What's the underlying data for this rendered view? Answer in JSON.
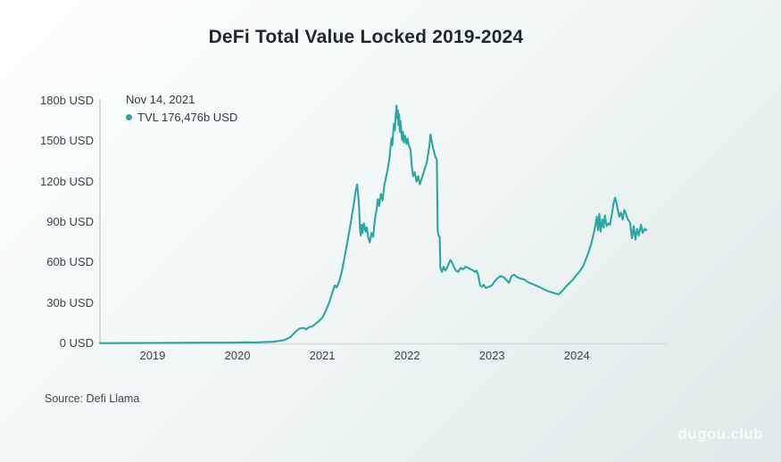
{
  "page": {
    "title": "DeFi Total Value Locked 2019-2024",
    "source": "Source: Defi Llama",
    "watermark": "dugou.club"
  },
  "tooltip": {
    "date": "Nov 14, 2021",
    "value_label": "TVL 176,476b USD"
  },
  "colors": {
    "line": "#2aa79e",
    "axis": "#d4dbdd",
    "text": "#39444c",
    "title": "#1d2830",
    "bg_start": "#fdfefe",
    "bg_mid": "#f2f8f7",
    "bg_end": "#dde9e8"
  },
  "chart_data": {
    "type": "line",
    "title": "DeFi Total Value Locked 2019-2024",
    "xlabel": "",
    "ylabel": "",
    "unit": "b USD",
    "grid": false,
    "legend_position": "top-left",
    "x_range": [
      2018.38,
      2025.07
    ],
    "y_range": [
      0,
      180
    ],
    "x_ticks": [
      {
        "label": "2019",
        "value": 2019
      },
      {
        "label": "2020",
        "value": 2020
      },
      {
        "label": "2021",
        "value": 2021
      },
      {
        "label": "2022",
        "value": 2022
      },
      {
        "label": "2023",
        "value": 2023
      },
      {
        "label": "2024",
        "value": 2024
      }
    ],
    "y_ticks": [
      {
        "label": "0 USD",
        "value": 0
      },
      {
        "label": "30b USD",
        "value": 30
      },
      {
        "label": "60b USD",
        "value": 60
      },
      {
        "label": "90b USD",
        "value": 90
      },
      {
        "label": "120b USD",
        "value": 120
      },
      {
        "label": "150b USD",
        "value": 150
      },
      {
        "label": "180b USD",
        "value": 180
      }
    ],
    "annotation": {
      "date": "Nov 14, 2021",
      "label": "TVL 176,476b USD",
      "x": 2021.875,
      "y": 176.476
    },
    "series": [
      {
        "name": "TVL",
        "points": [
          [
            2018.38,
            0.2
          ],
          [
            2018.7,
            0.25
          ],
          [
            2019.0,
            0.3
          ],
          [
            2019.3,
            0.45
          ],
          [
            2019.6,
            0.5
          ],
          [
            2019.9,
            0.55
          ],
          [
            2020.0,
            0.6
          ],
          [
            2020.1,
            0.8
          ],
          [
            2020.19,
            0.6
          ],
          [
            2020.3,
            0.9
          ],
          [
            2020.42,
            1.2
          ],
          [
            2020.5,
            1.9
          ],
          [
            2020.56,
            2.6
          ],
          [
            2020.62,
            4.5
          ],
          [
            2020.66,
            7
          ],
          [
            2020.7,
            9.5
          ],
          [
            2020.73,
            11
          ],
          [
            2020.78,
            11.5
          ],
          [
            2020.81,
            10.3
          ],
          [
            2020.84,
            12
          ],
          [
            2020.88,
            12.5
          ],
          [
            2020.92,
            14.5
          ],
          [
            2020.96,
            16.5
          ],
          [
            2021.0,
            19
          ],
          [
            2021.04,
            24
          ],
          [
            2021.08,
            30
          ],
          [
            2021.11,
            36
          ],
          [
            2021.13,
            40
          ],
          [
            2021.15,
            43
          ],
          [
            2021.17,
            41.5
          ],
          [
            2021.2,
            46
          ],
          [
            2021.23,
            53
          ],
          [
            2021.26,
            63
          ],
          [
            2021.29,
            73
          ],
          [
            2021.31,
            80
          ],
          [
            2021.33,
            87
          ],
          [
            2021.35,
            95
          ],
          [
            2021.37,
            103
          ],
          [
            2021.39,
            112
          ],
          [
            2021.41,
            118
          ],
          [
            2021.425,
            109
          ],
          [
            2021.435,
            100
          ],
          [
            2021.445,
            84
          ],
          [
            2021.455,
            80
          ],
          [
            2021.465,
            88
          ],
          [
            2021.475,
            82
          ],
          [
            2021.49,
            89
          ],
          [
            2021.51,
            83
          ],
          [
            2021.525,
            86
          ],
          [
            2021.54,
            79
          ],
          [
            2021.56,
            75
          ],
          [
            2021.58,
            82
          ],
          [
            2021.6,
            79
          ],
          [
            2021.62,
            92
          ],
          [
            2021.64,
            99
          ],
          [
            2021.655,
            107
          ],
          [
            2021.67,
            102
          ],
          [
            2021.69,
            111
          ],
          [
            2021.71,
            106
          ],
          [
            2021.73,
            117
          ],
          [
            2021.75,
            123
          ],
          [
            2021.77,
            129
          ],
          [
            2021.79,
            137
          ],
          [
            2021.805,
            146
          ],
          [
            2021.815,
            152
          ],
          [
            2021.825,
            147
          ],
          [
            2021.835,
            156
          ],
          [
            2021.845,
            163
          ],
          [
            2021.855,
            158
          ],
          [
            2021.865,
            169
          ],
          [
            2021.875,
            176.5
          ],
          [
            2021.882,
            167
          ],
          [
            2021.89,
            173
          ],
          [
            2021.898,
            162
          ],
          [
            2021.906,
            170
          ],
          [
            2021.914,
            157
          ],
          [
            2021.922,
            165
          ],
          [
            2021.93,
            159
          ],
          [
            2021.94,
            151
          ],
          [
            2021.95,
            157
          ],
          [
            2021.96,
            149
          ],
          [
            2021.975,
            154
          ],
          [
            2021.99,
            148
          ],
          [
            2022.005,
            152
          ],
          [
            2022.02,
            147
          ],
          [
            2022.04,
            144
          ],
          [
            2022.055,
            131
          ],
          [
            2022.07,
            124
          ],
          [
            2022.09,
            127
          ],
          [
            2022.11,
            120
          ],
          [
            2022.13,
            124
          ],
          [
            2022.15,
            118
          ],
          [
            2022.17,
            122
          ],
          [
            2022.19,
            126
          ],
          [
            2022.21,
            130
          ],
          [
            2022.23,
            134
          ],
          [
            2022.25,
            141
          ],
          [
            2022.265,
            148
          ],
          [
            2022.275,
            155
          ],
          [
            2022.29,
            150
          ],
          [
            2022.31,
            144
          ],
          [
            2022.33,
            139
          ],
          [
            2022.35,
            136
          ],
          [
            2022.36,
            83
          ],
          [
            2022.372,
            80
          ],
          [
            2022.384,
            79
          ],
          [
            2022.392,
            56
          ],
          [
            2022.41,
            53
          ],
          [
            2022.43,
            57
          ],
          [
            2022.45,
            54
          ],
          [
            2022.47,
            56
          ],
          [
            2022.49,
            59
          ],
          [
            2022.51,
            62
          ],
          [
            2022.53,
            60
          ],
          [
            2022.55,
            57
          ],
          [
            2022.575,
            54
          ],
          [
            2022.6,
            53
          ],
          [
            2022.63,
            56
          ],
          [
            2022.66,
            55
          ],
          [
            2022.69,
            57
          ],
          [
            2022.72,
            56
          ],
          [
            2022.75,
            55
          ],
          [
            2022.78,
            54
          ],
          [
            2022.8,
            53
          ],
          [
            2022.82,
            54
          ],
          [
            2022.84,
            50
          ],
          [
            2022.86,
            43
          ],
          [
            2022.88,
            42
          ],
          [
            2022.9,
            43.5
          ],
          [
            2022.93,
            41
          ],
          [
            2022.96,
            42
          ],
          [
            2023.0,
            43
          ],
          [
            2023.03,
            46
          ],
          [
            2023.06,
            48
          ],
          [
            2023.1,
            50
          ],
          [
            2023.14,
            49
          ],
          [
            2023.17,
            47
          ],
          [
            2023.2,
            45
          ],
          [
            2023.23,
            50
          ],
          [
            2023.26,
            51
          ],
          [
            2023.3,
            49
          ],
          [
            2023.34,
            48
          ],
          [
            2023.38,
            47.5
          ],
          [
            2023.42,
            45.5
          ],
          [
            2023.46,
            44.5
          ],
          [
            2023.5,
            43.5
          ],
          [
            2023.55,
            42
          ],
          [
            2023.6,
            40.5
          ],
          [
            2023.65,
            39
          ],
          [
            2023.7,
            38
          ],
          [
            2023.75,
            37
          ],
          [
            2023.79,
            36.5
          ],
          [
            2023.83,
            39
          ],
          [
            2023.87,
            42
          ],
          [
            2023.91,
            44.5
          ],
          [
            2023.95,
            47
          ],
          [
            2024.0,
            51
          ],
          [
            2024.04,
            54
          ],
          [
            2024.08,
            58
          ],
          [
            2024.11,
            63
          ],
          [
            2024.14,
            68
          ],
          [
            2024.17,
            74
          ],
          [
            2024.2,
            82
          ],
          [
            2024.22,
            88
          ],
          [
            2024.235,
            94
          ],
          [
            2024.25,
            84
          ],
          [
            2024.265,
            96
          ],
          [
            2024.28,
            83
          ],
          [
            2024.3,
            92
          ],
          [
            2024.315,
            86
          ],
          [
            2024.33,
            95
          ],
          [
            2024.35,
            87
          ],
          [
            2024.37,
            89
          ],
          [
            2024.39,
            88
          ],
          [
            2024.41,
            95
          ],
          [
            2024.43,
            103
          ],
          [
            2024.45,
            108
          ],
          [
            2024.465,
            105
          ],
          [
            2024.48,
            100
          ],
          [
            2024.5,
            94
          ],
          [
            2024.52,
            97
          ],
          [
            2024.54,
            92
          ],
          [
            2024.56,
            99
          ],
          [
            2024.58,
            96
          ],
          [
            2024.6,
            92
          ],
          [
            2024.625,
            90
          ],
          [
            2024.65,
            78
          ],
          [
            2024.67,
            87
          ],
          [
            2024.69,
            77
          ],
          [
            2024.71,
            85
          ],
          [
            2024.73,
            80
          ],
          [
            2024.755,
            88
          ],
          [
            2024.775,
            82
          ],
          [
            2024.8,
            85
          ],
          [
            2024.82,
            84
          ]
        ]
      }
    ]
  }
}
